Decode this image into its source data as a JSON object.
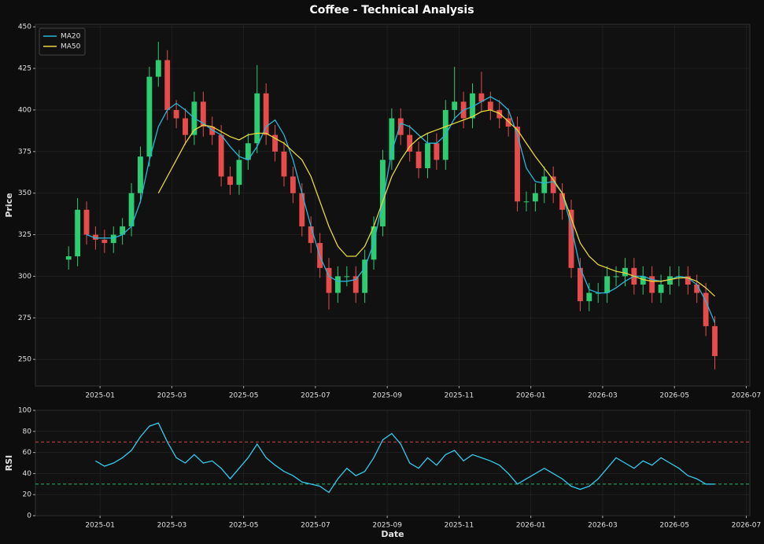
{
  "chart_data": [
    {
      "type": "candlestick",
      "title": "Coffee - Technical Analysis",
      "ylabel": "Price",
      "x": [
        -0.875,
        -0.625,
        -0.375,
        -0.125,
        0.125,
        0.375,
        0.625,
        0.875,
        1.125,
        1.375,
        1.625,
        1.875,
        2.125,
        2.375,
        2.625,
        2.875,
        3.125,
        3.375,
        3.625,
        3.875,
        4.125,
        4.375,
        4.625,
        4.875,
        5.125,
        5.375,
        5.625,
        5.875,
        6.125,
        6.375,
        6.625,
        6.875,
        7.125,
        7.375,
        7.625,
        7.875,
        8.125,
        8.375,
        8.625,
        8.875,
        9.125,
        9.375,
        9.625,
        9.875,
        10.125,
        10.375,
        10.625,
        10.875,
        11.125,
        11.375,
        11.625,
        11.875,
        12.125,
        12.375,
        12.625,
        12.875,
        13.125,
        13.375,
        13.625,
        13.875,
        14.125,
        14.375,
        14.625,
        14.875,
        15.125,
        15.375,
        15.625,
        15.875,
        16.125,
        16.375,
        16.625,
        16.875,
        17.125
      ],
      "open": [
        310,
        312,
        340,
        325,
        322,
        320,
        325,
        330,
        350,
        372,
        420,
        430,
        400,
        395,
        385,
        405,
        390,
        385,
        360,
        355,
        370,
        380,
        410,
        385,
        375,
        360,
        350,
        330,
        320,
        305,
        290,
        300,
        300,
        290,
        310,
        330,
        370,
        395,
        385,
        375,
        365,
        380,
        370,
        400,
        405,
        395,
        410,
        405,
        400,
        395,
        390,
        345,
        345,
        350,
        360,
        350,
        340,
        305,
        285,
        290,
        290,
        300,
        300,
        305,
        295,
        300,
        290,
        295,
        300,
        300,
        295,
        290,
        270
      ],
      "high": [
        318,
        347,
        345,
        330,
        328,
        330,
        335,
        356,
        378,
        426,
        441,
        436,
        406,
        401,
        411,
        411,
        396,
        391,
        366,
        376,
        386,
        427,
        416,
        391,
        381,
        366,
        356,
        336,
        326,
        311,
        306,
        306,
        306,
        316,
        336,
        376,
        401,
        401,
        391,
        381,
        386,
        386,
        406,
        426,
        411,
        416,
        423,
        411,
        406,
        401,
        396,
        351,
        356,
        366,
        366,
        356,
        346,
        311,
        296,
        296,
        306,
        306,
        311,
        311,
        306,
        306,
        301,
        306,
        306,
        306,
        301,
        296,
        276
      ],
      "low": [
        304,
        306,
        319,
        316,
        314,
        314,
        319,
        324,
        344,
        366,
        414,
        394,
        389,
        379,
        379,
        384,
        379,
        354,
        349,
        349,
        364,
        374,
        379,
        369,
        354,
        344,
        324,
        314,
        299,
        280,
        284,
        294,
        284,
        284,
        304,
        324,
        364,
        379,
        369,
        359,
        359,
        364,
        364,
        394,
        389,
        389,
        399,
        394,
        389,
        384,
        339,
        339,
        339,
        344,
        344,
        334,
        299,
        279,
        279,
        284,
        284,
        294,
        294,
        289,
        289,
        284,
        284,
        289,
        294,
        289,
        284,
        264,
        244
      ],
      "close": [
        312,
        340,
        325,
        322,
        320,
        325,
        330,
        350,
        372,
        420,
        430,
        400,
        395,
        385,
        405,
        390,
        385,
        360,
        355,
        370,
        380,
        410,
        385,
        375,
        360,
        350,
        330,
        320,
        305,
        290,
        300,
        300,
        290,
        310,
        330,
        370,
        395,
        385,
        375,
        365,
        380,
        370,
        400,
        405,
        395,
        410,
        405,
        400,
        395,
        390,
        345,
        345,
        350,
        360,
        350,
        340,
        305,
        285,
        290,
        290,
        300,
        300,
        305,
        295,
        300,
        290,
        295,
        300,
        300,
        295,
        290,
        270,
        252
      ],
      "up_color": "#2ecc71",
      "down_color": "#e74c4c",
      "series": [
        {
          "name": "MA20",
          "color": "#29b6d8",
          "values": [
            null,
            null,
            325,
            323,
            323,
            323,
            325,
            330,
            345,
            370,
            390,
            400,
            404,
            400,
            395,
            392,
            388,
            385,
            378,
            372,
            370,
            378,
            390,
            394,
            385,
            370,
            350,
            330,
            312,
            300,
            297,
            297,
            298,
            305,
            320,
            345,
            375,
            392,
            390,
            385,
            380,
            380,
            385,
            395,
            400,
            402,
            405,
            408,
            405,
            400,
            385,
            365,
            357,
            356,
            357,
            350,
            330,
            305,
            292,
            290,
            290,
            293,
            297,
            300,
            300,
            298,
            297,
            298,
            300,
            299,
            295,
            285,
            272
          ]
        },
        {
          "name": "MA50",
          "color": "#e8d83a",
          "values": [
            null,
            null,
            null,
            null,
            null,
            null,
            null,
            null,
            null,
            null,
            350,
            360,
            370,
            380,
            388,
            391,
            390,
            387,
            384,
            382,
            385,
            386,
            386,
            383,
            380,
            375,
            370,
            360,
            345,
            330,
            318,
            312,
            312,
            318,
            330,
            345,
            360,
            370,
            378,
            383,
            386,
            388,
            390,
            392,
            394,
            396,
            399,
            400,
            398,
            393,
            388,
            380,
            372,
            365,
            358,
            350,
            335,
            320,
            312,
            307,
            305,
            303,
            302,
            300,
            298,
            297,
            297,
            298,
            299,
            299,
            297,
            293,
            288
          ]
        }
      ],
      "legend": "upper left",
      "grid": true,
      "xlim": [
        -1.8,
        18.1
      ],
      "xticks": [
        {
          "value": 0,
          "label": "2025-01"
        },
        {
          "value": 2,
          "label": "2025-03"
        },
        {
          "value": 4,
          "label": "2025-05"
        },
        {
          "value": 6,
          "label": "2025-07"
        },
        {
          "value": 8,
          "label": "2025-09"
        },
        {
          "value": 10,
          "label": "2025-11"
        },
        {
          "value": 12,
          "label": "2026-01"
        },
        {
          "value": 14,
          "label": "2026-03"
        },
        {
          "value": 16,
          "label": "2026-05"
        },
        {
          "value": 18,
          "label": "2026-07"
        }
      ],
      "ylim": [
        234,
        451.5
      ],
      "yticks": [
        250,
        275,
        300,
        325,
        350,
        375,
        400,
        425,
        450
      ]
    },
    {
      "type": "line",
      "xlabel": "Date",
      "ylabel": "RSI",
      "x": [
        -0.875,
        -0.625,
        -0.375,
        -0.125,
        0.125,
        0.375,
        0.625,
        0.875,
        1.125,
        1.375,
        1.625,
        1.875,
        2.125,
        2.375,
        2.625,
        2.875,
        3.125,
        3.375,
        3.625,
        3.875,
        4.125,
        4.375,
        4.625,
        4.875,
        5.125,
        5.375,
        5.625,
        5.875,
        6.125,
        6.375,
        6.625,
        6.875,
        7.125,
        7.375,
        7.625,
        7.875,
        8.125,
        8.375,
        8.625,
        8.875,
        9.125,
        9.375,
        9.625,
        9.875,
        10.125,
        10.375,
        10.625,
        10.875,
        11.125,
        11.375,
        11.625,
        11.875,
        12.125,
        12.375,
        12.625,
        12.875,
        13.125,
        13.375,
        13.625,
        13.875,
        14.125,
        14.375,
        14.625,
        14.875,
        15.125,
        15.375,
        15.625,
        15.875,
        16.125,
        16.375,
        16.625,
        16.875,
        17.125
      ],
      "color": "#33ccee",
      "values": [
        null,
        null,
        null,
        52,
        47,
        50,
        55,
        62,
        75,
        85,
        88,
        70,
        55,
        50,
        58,
        50,
        52,
        45,
        35,
        45,
        55,
        68,
        55,
        48,
        42,
        38,
        32,
        30,
        28,
        22,
        35,
        45,
        38,
        42,
        55,
        72,
        78,
        68,
        50,
        45,
        55,
        48,
        58,
        62,
        52,
        58,
        55,
        52,
        48,
        40,
        30,
        35,
        40,
        45,
        40,
        35,
        28,
        25,
        28,
        35,
        45,
        55,
        50,
        45,
        52,
        48,
        55,
        50,
        45,
        38,
        35,
        30,
        30
      ],
      "reference_lines": [
        {
          "value": 70,
          "color": "#e74c4c"
        },
        {
          "value": 30,
          "color": "#2ecc71"
        }
      ],
      "grid": true,
      "xlim": [
        -1.8,
        18.1
      ],
      "xticks": [
        {
          "value": 0,
          "label": "2025-01"
        },
        {
          "value": 2,
          "label": "2025-03"
        },
        {
          "value": 4,
          "label": "2025-05"
        },
        {
          "value": 6,
          "label": "2025-07"
        },
        {
          "value": 8,
          "label": "2025-09"
        },
        {
          "value": 10,
          "label": "2025-11"
        },
        {
          "value": 12,
          "label": "2026-01"
        },
        {
          "value": 14,
          "label": "2026-03"
        },
        {
          "value": 16,
          "label": "2026-05"
        },
        {
          "value": 18,
          "label": "2026-07"
        }
      ],
      "ylim": [
        0,
        100
      ],
      "yticks": [
        0,
        20,
        40,
        60,
        80,
        100
      ]
    }
  ]
}
